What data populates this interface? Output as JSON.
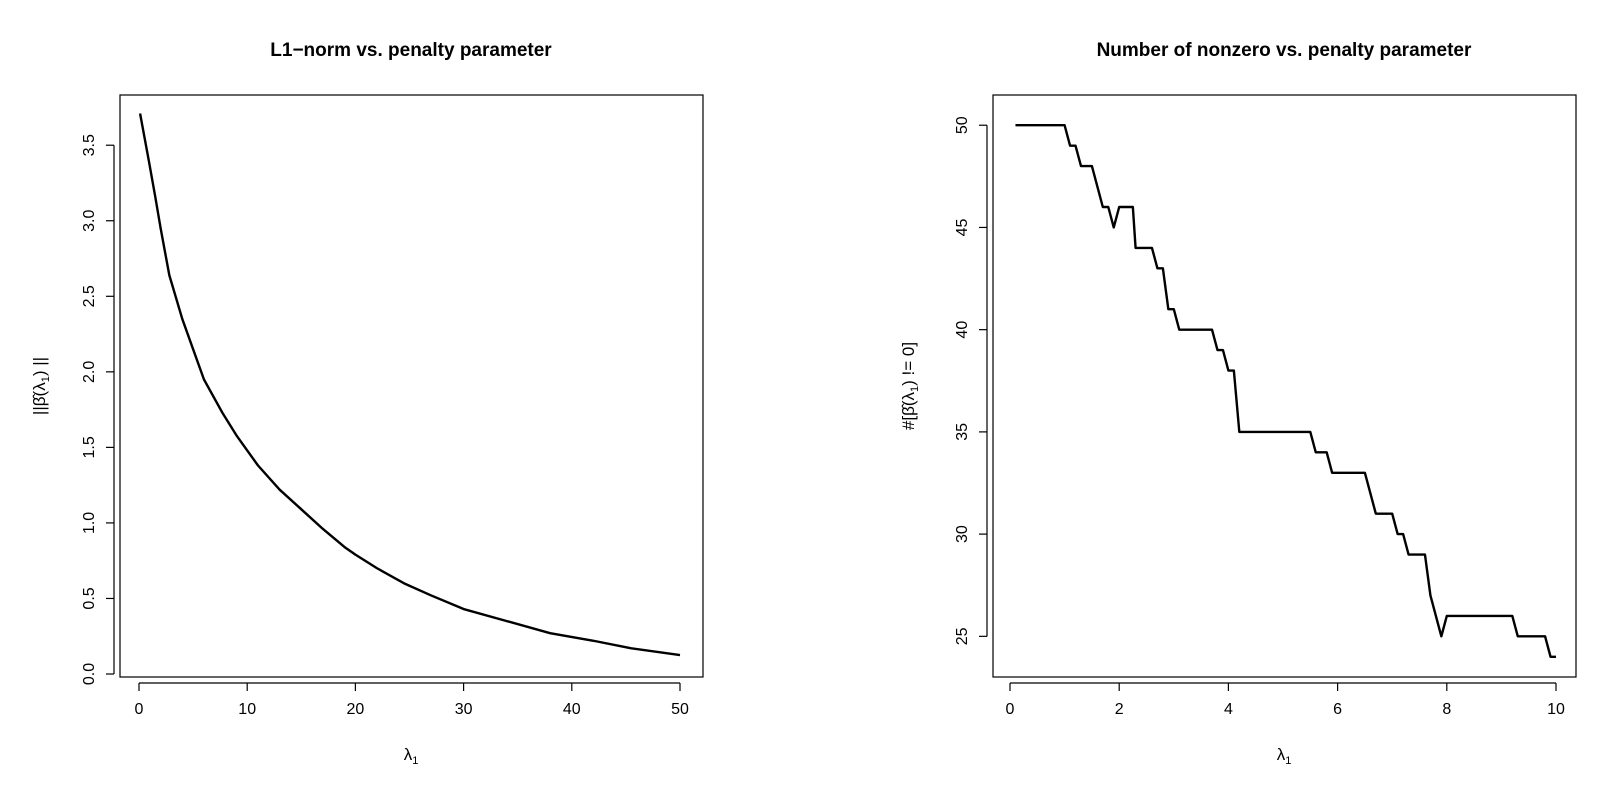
{
  "chart_data": [
    {
      "type": "line",
      "title": "L1−norm vs. penalty parameter",
      "xlabel": {
        "main": "λ",
        "sub": "1"
      },
      "ylabel": {
        "main": "||β̂(λ",
        "sub": "1",
        "tail": ") ||"
      },
      "xlim": [
        0,
        50
      ],
      "ylim": [
        0,
        3.7
      ],
      "xticks": [
        0,
        10,
        20,
        30,
        40,
        50
      ],
      "xtick_labels": [
        "0",
        "10",
        "20",
        "30",
        "40",
        "50"
      ],
      "yticks": [
        0,
        0.5,
        1,
        1.5,
        2,
        2.5,
        3,
        3.5
      ],
      "ytick_labels": [
        "0.0",
        "0.5",
        "1.0",
        "1.5",
        "2.0",
        "2.5",
        "3.0",
        "3.5"
      ],
      "grid": false,
      "series": [
        {
          "x": [
            0.1,
            0.9,
            1.5,
            2.0,
            2.8,
            4.0,
            5.0,
            6.0,
            7.7,
            9.0,
            10.0,
            11.0,
            13.0,
            15.0,
            17.0,
            19.0,
            20.0,
            22.0,
            24.5,
            27.0,
            30.0,
            34.0,
            38.0,
            42.0,
            45.5,
            50.0
          ],
          "y": [
            3.71,
            3.4,
            3.16,
            2.95,
            2.64,
            2.35,
            2.15,
            1.95,
            1.73,
            1.58,
            1.48,
            1.38,
            1.22,
            1.09,
            0.96,
            0.84,
            0.79,
            0.7,
            0.6,
            0.52,
            0.43,
            0.35,
            0.27,
            0.22,
            0.17,
            0.125
          ]
        }
      ]
    },
    {
      "type": "line",
      "title": "Number of nonzero vs. penalty parameter",
      "xlabel": {
        "main": "λ",
        "sub": "1"
      },
      "ylabel": {
        "main": "#[β̂(λ",
        "sub": "1",
        "tail": ") != 0]"
      },
      "xlim": [
        0,
        10
      ],
      "ylim": [
        23.5,
        50.5
      ],
      "xticks": [
        0,
        2,
        4,
        6,
        8,
        10
      ],
      "xtick_labels": [
        "0",
        "2",
        "4",
        "6",
        "8",
        "10"
      ],
      "yticks": [
        25,
        30,
        35,
        40,
        45,
        50
      ],
      "ytick_labels": [
        "25",
        "30",
        "35",
        "40",
        "45",
        "50"
      ],
      "grid": false,
      "series": [
        {
          "x": [
            0.1,
            1.0,
            1.1,
            1.2,
            1.3,
            1.5,
            1.7,
            1.8,
            1.9,
            2.0,
            2.1,
            2.25,
            2.3,
            2.6,
            2.7,
            2.8,
            2.9,
            3.0,
            3.1,
            3.7,
            3.8,
            3.9,
            4.0,
            4.1,
            4.2,
            5.5,
            5.6,
            5.8,
            5.9,
            6.4,
            6.5,
            6.7,
            6.8,
            7.0,
            7.1,
            7.2,
            7.3,
            7.5,
            7.6,
            7.7,
            7.9,
            8.0,
            8.2,
            9.2,
            9.3,
            9.8,
            9.9,
            10.0
          ],
          "y": [
            50,
            50,
            49,
            49,
            48,
            48,
            46,
            46,
            45,
            46,
            46,
            46,
            44,
            44,
            43,
            43,
            41,
            41,
            40,
            40,
            39,
            39,
            38,
            38,
            35,
            35,
            34,
            34,
            33,
            33,
            33,
            31,
            31,
            31,
            30,
            30,
            29,
            29,
            29,
            27,
            25,
            26,
            26,
            26,
            25,
            25,
            24,
            24
          ]
        }
      ]
    }
  ]
}
